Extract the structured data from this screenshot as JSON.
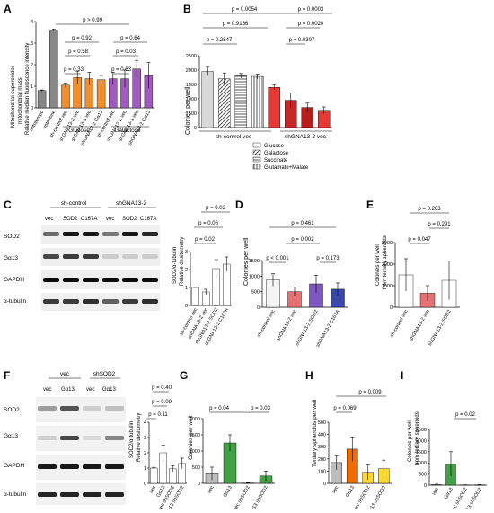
{
  "panels": {
    "A": {
      "letter": "A",
      "ylabel1": "Mitochondrial superoxide/",
      "ylabel2": "mitochondrial mass",
      "ylabel3": "Relative median fluorescence intensity",
      "group_labels": [
        "Glucose",
        "Galactose"
      ],
      "pvalues": [
        "p > 0.99",
        "p = 0.92",
        "p = 0.58",
        "p = 0.33",
        "p = 0.64",
        "p = 0.03",
        "p = 0.63"
      ]
    },
    "B": {
      "letter": "B",
      "pvalues": [
        "p = 0.0054",
        "p = 0.0003",
        "p = 0.9166",
        "p = 0.0020",
        "p = 0.2847",
        "p = 0.0307"
      ],
      "group_labels": [
        "sh-control vec",
        "shGNA13-2 vec"
      ],
      "legend": [
        "Glucose",
        "Galactose",
        "Succinate",
        "Glutamate+Malate"
      ]
    },
    "C": {
      "letter": "C",
      "header_groups": [
        "sh-control",
        "shGNA13-2"
      ],
      "lane_labels": [
        "vec",
        "SOD2",
        "C167A",
        "vec",
        "SOD2",
        "C167A"
      ],
      "blot_labels": [
        "SOD2",
        "Gα13",
        "GAPDH",
        "α-tubulin"
      ],
      "ylabel1": "SOD2/α-tubulin",
      "ylabel2": "Relative desitometry",
      "pvalues": [
        "p = 0.02",
        "p = 0.06",
        "p = 0.02"
      ]
    },
    "D": {
      "letter": "D",
      "pvalues": [
        "p = 0.461",
        "p = 0.002",
        "p < 0.001",
        "p = 0.173"
      ]
    },
    "E": {
      "letter": "E",
      "ylabel1": "Colonies per well",
      "ylabel2": "from tertiary spheroids",
      "pvalues": [
        "p = 0.263",
        "p = 0.291",
        "p = 0.047"
      ]
    },
    "F": {
      "letter": "F",
      "header_groups": [
        "vec",
        "shSOD2"
      ],
      "lane_labels": [
        "vec",
        "Gα13",
        "vec",
        "Gα13"
      ],
      "blot_labels": [
        "SOD2",
        "Gα13",
        "GAPDH",
        "α-tubulin"
      ],
      "ylabel1": "SOD2/α-tubulin",
      "ylabel2": "Relative desitometry",
      "pvalues": [
        "p = 0.40",
        "p = 0.09",
        "p = 0.11"
      ]
    },
    "G": {
      "letter": "G",
      "pvalues": [
        "p = 0.04",
        "p = 0.03"
      ]
    },
    "H": {
      "letter": "H",
      "pvalues": [
        "p = 0.009",
        "p = 0.069"
      ]
    },
    "I": {
      "letter": "I",
      "ylabel1": "Colonies per well",
      "ylabel2": "from tertiary spheroids",
      "pvalues": [
        "p = 0.02"
      ]
    }
  },
  "chart_data": [
    {
      "panel": "A",
      "type": "bar",
      "categories": [
        "mitotempo",
        "rotenone",
        "sh-control vec",
        "shGNA13-2 vec",
        "shGNA13-1 vec",
        "shGNA13-2 Gα13",
        "sh-control vec",
        "shGNA13-2 vec",
        "shGNA13-1 vec",
        "shGNA13-2 Gα13"
      ],
      "values": [
        0.8,
        3.6,
        1.05,
        1.4,
        1.35,
        1.3,
        1.35,
        1.35,
        1.8,
        1.5
      ],
      "errors": [
        0.03,
        0.05,
        0.1,
        0.3,
        0.3,
        0.2,
        0.3,
        0.4,
        0.4,
        0.6
      ],
      "colors": [
        "#888888",
        "#888888",
        "#f28e2b",
        "#f28e2b",
        "#f28e2b",
        "#f28e2b",
        "#a05bbf",
        "#a05bbf",
        "#a05bbf",
        "#a05bbf"
      ],
      "ylim": [
        0,
        4
      ],
      "yticks": [
        0,
        1,
        2,
        3,
        4
      ]
    },
    {
      "panel": "B",
      "type": "bar",
      "categories": [
        "sh-control vec Glucose",
        "sh-control vec Galactose",
        "sh-control vec Succinate",
        "sh-control vec Glutamate+Malate",
        "shGNA13-2 vec Glucose",
        "shGNA13-2 vec Galactose",
        "shGNA13-2 vec Succinate",
        "shGNA13-2 vec Glutamate+Malate"
      ],
      "values": [
        1950,
        1700,
        1800,
        1780,
        1400,
        950,
        700,
        600
      ],
      "errors": [
        150,
        200,
        80,
        80,
        80,
        250,
        150,
        120
      ],
      "ylabel": "Colonies per well",
      "ylim": [
        0,
        2500
      ],
      "yticks": [
        0,
        500,
        1000,
        1500,
        2000,
        2500
      ]
    },
    {
      "panel": "C",
      "type": "bar",
      "categories": [
        "sh-control vec",
        "shGNA13-2 vec",
        "shGNA13-2 SOD2",
        "shGNA13-2 C167A"
      ],
      "values": [
        1.0,
        0.75,
        2.05,
        2.3
      ],
      "errors": [
        0.03,
        0.15,
        0.5,
        0.4
      ],
      "ylim": [
        0,
        3
      ],
      "yticks": [
        0,
        1,
        2,
        3
      ]
    },
    {
      "panel": "D",
      "type": "bar",
      "categories": [
        "sh-control vec",
        "shGNA13-2 vec",
        "shGNA13-2 SOD2",
        "shGNA13-2 C167A"
      ],
      "values": [
        880,
        500,
        750,
        580
      ],
      "errors": [
        200,
        150,
        280,
        200
      ],
      "ylabel": "Colonies per well",
      "ylim": [
        0,
        1500
      ],
      "yticks": [
        0,
        500,
        1000,
        1500
      ]
    },
    {
      "panel": "E",
      "type": "bar",
      "categories": [
        "sh-control vec",
        "shGNA13-2 vec",
        "shGNA13-2 SOD2"
      ],
      "values": [
        1500,
        650,
        1250
      ],
      "errors": [
        750,
        350,
        900
      ],
      "ylim": [
        0,
        3000
      ],
      "yticks": [
        0,
        1000,
        2000,
        3000
      ]
    },
    {
      "panel": "F",
      "type": "bar",
      "categories": [
        "vec",
        "Gα13",
        "vec shSOD2",
        "Gα13 shSOD2"
      ],
      "values": [
        1.0,
        2.0,
        0.95,
        1.3
      ],
      "errors": [
        0.05,
        0.5,
        0.2,
        0.35
      ],
      "ylim": [
        0,
        4
      ],
      "yticks": [
        0,
        1,
        2,
        3,
        4
      ]
    },
    {
      "panel": "G",
      "type": "bar",
      "categories": [
        "vec",
        "Gα13",
        "vec shSOD2",
        "Gα13 shSOD2"
      ],
      "values": [
        300,
        1250,
        10,
        230
      ],
      "errors": [
        200,
        250,
        10,
        150
      ],
      "ylabel": "Colonies per well",
      "ylim": [
        0,
        2000
      ],
      "yticks": [
        0,
        500,
        1000,
        1500,
        2000
      ]
    },
    {
      "panel": "H",
      "type": "bar",
      "categories": [
        "vec",
        "Gα13",
        "vec shSOD2",
        "Gα13 shSOD2"
      ],
      "values": [
        170,
        280,
        90,
        120
      ],
      "errors": [
        60,
        100,
        60,
        70
      ],
      "ylabel": "Tertiary spheroids per well",
      "ylim": [
        0,
        500
      ],
      "yticks": [
        0,
        100,
        200,
        300,
        400,
        500
      ]
    },
    {
      "panel": "I",
      "type": "bar",
      "categories": [
        "vec",
        "Gα13",
        "vec shSOD2",
        "Gα13 shSOD2"
      ],
      "values": [
        30,
        950,
        10,
        15
      ],
      "errors": [
        10,
        550,
        5,
        10
      ],
      "ylim": [
        0,
        2500
      ],
      "yticks": [
        0,
        500,
        1000,
        1500,
        2000,
        2500
      ]
    }
  ]
}
